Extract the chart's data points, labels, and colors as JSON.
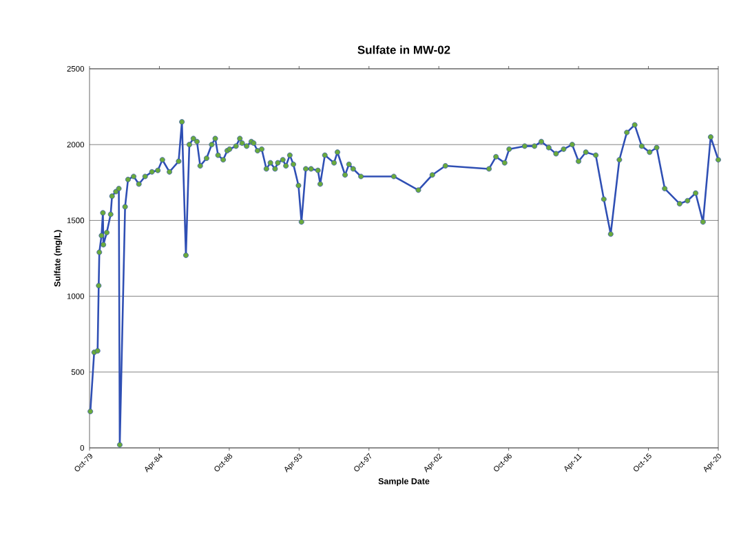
{
  "chart_data": {
    "type": "line",
    "title": "Sulfate in MW-02",
    "xlabel": "Sample Date",
    "ylabel": "Sulfate (mg/L)",
    "x": [
      "1979-10-20",
      "1980-01-18",
      "1980-04-08",
      "1980-05-04",
      "1980-05-19",
      "1980-07-09",
      "1980-08-11",
      "1980-08-22",
      "1980-11-10",
      "1981-02-10",
      "1981-03-14",
      "1981-06-13",
      "1981-08-21",
      "1981-09-12",
      "1982-01-15",
      "1982-03-25",
      "1982-08-04",
      "1982-12-06",
      "1983-05-01",
      "1983-10-08",
      "1984-02-24",
      "1984-06-10",
      "1984-11-24",
      "1985-06-28",
      "1985-09-13",
      "1985-12-16",
      "1986-03-07",
      "1986-06-10",
      "1986-09-02",
      "1986-11-17",
      "1987-04-16",
      "1987-08-14",
      "1987-11-06",
      "1988-01-11",
      "1988-05-11",
      "1988-08-14",
      "1988-10-08",
      "1989-03-08",
      "1989-06-07",
      "1989-07-31",
      "1989-11-14",
      "1990-03-04",
      "1990-04-28",
      "1990-07-28",
      "1990-11-03",
      "1991-02-21",
      "1991-05-27",
      "1991-09-13",
      "1991-11-17",
      "1992-03-14",
      "1992-05-26",
      "1992-08-26",
      "1992-11-18",
      "1993-03-18",
      "1993-05-27",
      "1993-09-06",
      "1994-01-08",
      "1994-06-18",
      "1994-08-11",
      "1994-11-28",
      "1995-07-02",
      "1995-09-20",
      "1996-03-17",
      "1996-06-17",
      "1996-09-24",
      "1997-03-26",
      "1999-05-08",
      "2000-12-06",
      "2001-10-30",
      "2002-09-03",
      "2005-06-25",
      "2005-12-06",
      "2006-06-28",
      "2006-10-12",
      "2007-10-12",
      "2008-05-30",
      "2008-11-07",
      "2009-05-01",
      "2009-10-19",
      "2010-04-16",
      "2010-11-03",
      "2011-04-01",
      "2011-09-20",
      "2012-05-11",
      "2012-11-17",
      "2013-04-27",
      "2013-11-17",
      "2014-05-11",
      "2014-11-13",
      "2015-04-27",
      "2015-10-30",
      "2016-04-12",
      "2016-10-19",
      "2017-10-05",
      "2018-04-08",
      "2018-10-16",
      "2019-04-08",
      "2019-10-05",
      "2020-04-01"
    ],
    "series": [
      {
        "color": "#2f4fb4",
        "values": [
          240,
          630,
          640,
          1070,
          1290,
          1400,
          1550,
          1340,
          1420,
          1540,
          1660,
          1690,
          1710,
          20,
          1590,
          1770,
          1790,
          1740,
          1790,
          1820,
          1830,
          1900,
          1820,
          1890,
          2150,
          1270,
          2000,
          2040,
          2020,
          1860,
          1910,
          2000,
          2040,
          1930,
          1900,
          1960,
          1970,
          1990,
          2040,
          2010,
          1990,
          2020,
          2010,
          1960,
          1970,
          1840,
          1880,
          1840,
          1880,
          1900,
          1860,
          1930,
          1870,
          1730,
          1490,
          1840,
          1840,
          1830,
          1740,
          1930,
          1880,
          1950,
          1800,
          1870,
          1840,
          1790,
          1790,
          1700,
          1800,
          1860,
          1840,
          1920,
          1880,
          1970,
          1990,
          1990,
          2020,
          1980,
          1940,
          1970,
          2000,
          1890,
          1950,
          1930,
          1640,
          1410,
          1900,
          2080,
          2130,
          1990,
          1950,
          1980,
          1710,
          1610,
          1630,
          1680,
          1490,
          2050,
          1900
        ]
      }
    ],
    "xlim": [
      "1979-10-01",
      "2020-04-01"
    ],
    "xticks": [
      {
        "value": "1979-10-01",
        "label": "Oct-79"
      },
      {
        "value": "1984-04-01",
        "label": "Apr-84"
      },
      {
        "value": "1988-10-01",
        "label": "Oct-88"
      },
      {
        "value": "1993-04-01",
        "label": "Apr-93"
      },
      {
        "value": "1997-10-01",
        "label": "Oct-97"
      },
      {
        "value": "2002-04-01",
        "label": "Apr-02"
      },
      {
        "value": "2006-10-01",
        "label": "Oct-06"
      },
      {
        "value": "2011-04-01",
        "label": "Apr-11"
      },
      {
        "value": "2015-10-01",
        "label": "Oct-15"
      },
      {
        "value": "2020-04-01",
        "label": "Apr-20"
      }
    ],
    "ylim": [
      0,
      2500
    ],
    "yticks": [
      0,
      500,
      1000,
      1500,
      2000,
      2500
    ],
    "grid": "y",
    "legend": false,
    "marker": "circle",
    "line_style": "solid"
  }
}
